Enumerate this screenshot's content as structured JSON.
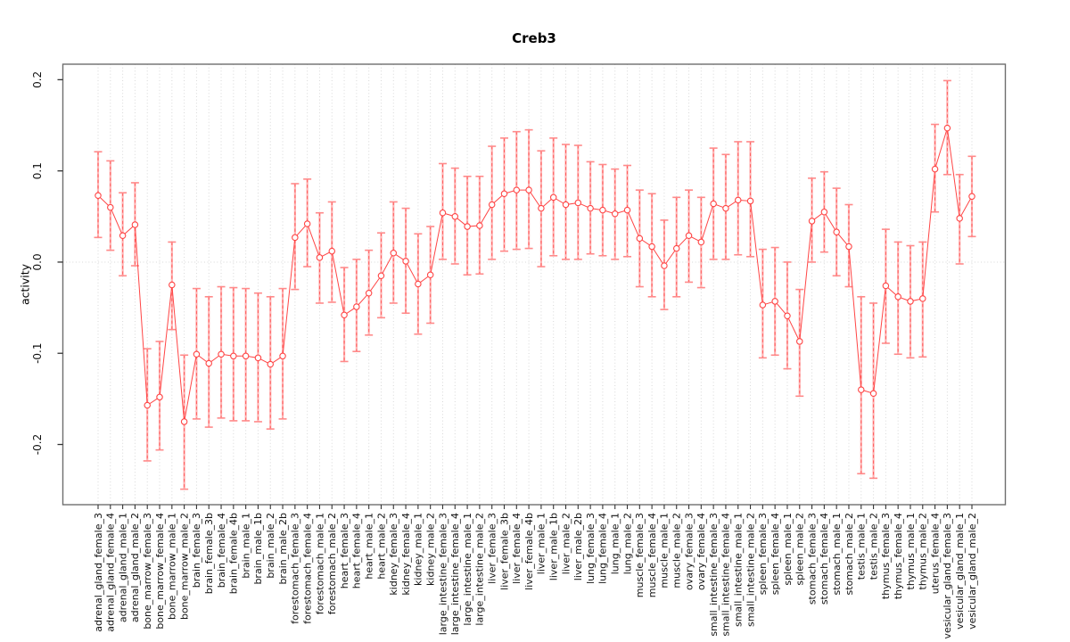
{
  "page": {
    "background": "#ffffff"
  },
  "chart_data": {
    "type": "scatter",
    "title": "Creb3",
    "ylabel": "activity",
    "xlabel": "",
    "legend": "none",
    "error_bars": true,
    "grid": "dotted vertical line per sample; dotted horizontal line at 0",
    "ylim": [
      -0.266,
      0.217
    ],
    "yticks": [
      0.2,
      0.1,
      0.0,
      -0.1,
      -0.2
    ],
    "ytick_labels": [
      "0.2",
      "0.1",
      "0.0",
      "-0.1",
      "-0.2"
    ],
    "samples": [
      "adrenal_gland_female_3",
      "adrenal_gland_female_4",
      "adrenal_gland_male_1",
      "adrenal_gland_male_2",
      "bone_marrow_female_3",
      "bone_marrow_female_4",
      "bone_marrow_male_1",
      "bone_marrow_male_2",
      "brain_female_3",
      "brain_female_3b",
      "brain_female_4",
      "brain_female_4b",
      "brain_male_1",
      "brain_male_1b",
      "brain_male_2",
      "brain_male_2b",
      "forestomach_female_3",
      "forestomach_female_4",
      "forestomach_male_1",
      "forestomach_male_2",
      "heart_female_3",
      "heart_female_4",
      "heart_male_1",
      "heart_male_2",
      "kidney_female_3",
      "kidney_female_4",
      "kidney_male_1",
      "kidney_male_2",
      "large_intestine_female_3",
      "large_intestine_female_4",
      "large_intestine_male_1",
      "large_intestine_male_2",
      "liver_female_3",
      "liver_female_3b",
      "liver_female_4",
      "liver_female_4b",
      "liver_male_1",
      "liver_male_1b",
      "liver_male_2",
      "liver_male_2b",
      "lung_female_3",
      "lung_female_4",
      "lung_male_1",
      "lung_male_2",
      "muscle_female_3",
      "muscle_female_4",
      "muscle_male_1",
      "muscle_male_2",
      "ovary_female_3",
      "ovary_female_4",
      "small_intestine_female_3",
      "small_intestine_female_4",
      "small_intestine_male_1",
      "small_intestine_male_2",
      "spleen_female_3",
      "spleen_female_4",
      "spleen_male_1",
      "spleen_male_2",
      "stomach_female_3",
      "stomach_female_4",
      "stomach_male_1",
      "stomach_male_2",
      "testis_male_1",
      "testis_male_2",
      "thymus_female_3",
      "thymus_female_4",
      "thymus_male_1",
      "thymus_male_2",
      "uterus_female_4",
      "vesicular_gland_female_3",
      "vesicular_gland_male_1",
      "vesicular_gland_male_2"
    ],
    "values": [
      0.073,
      0.06,
      0.029,
      0.041,
      -0.157,
      -0.148,
      -0.025,
      -0.175,
      -0.101,
      -0.111,
      -0.101,
      -0.103,
      -0.103,
      -0.105,
      -0.112,
      -0.103,
      0.027,
      0.042,
      0.005,
      0.012,
      -0.058,
      -0.049,
      -0.034,
      -0.015,
      0.01,
      0.001,
      -0.024,
      -0.014,
      0.054,
      0.05,
      0.039,
      0.04,
      0.063,
      0.075,
      0.079,
      0.079,
      0.059,
      0.071,
      0.063,
      0.065,
      0.059,
      0.057,
      0.053,
      0.057,
      0.026,
      0.017,
      -0.004,
      0.015,
      0.029,
      0.022,
      0.064,
      0.059,
      0.068,
      0.067,
      -0.047,
      -0.043,
      -0.059,
      -0.087,
      0.045,
      0.055,
      0.033,
      0.017,
      -0.14,
      -0.144,
      -0.026,
      -0.038,
      -0.043,
      -0.04,
      0.102,
      0.147,
      0.048,
      0.072
    ],
    "lo": [
      0.027,
      0.013,
      -0.015,
      -0.004,
      -0.218,
      -0.206,
      -0.074,
      -0.249,
      -0.172,
      -0.181,
      -0.171,
      -0.174,
      -0.174,
      -0.175,
      -0.183,
      -0.172,
      -0.03,
      -0.005,
      -0.045,
      -0.044,
      -0.109,
      -0.098,
      -0.08,
      -0.061,
      -0.045,
      -0.056,
      -0.079,
      -0.067,
      0.003,
      -0.002,
      -0.014,
      -0.013,
      0.003,
      0.012,
      0.014,
      0.015,
      -0.005,
      0.007,
      0.003,
      0.003,
      0.009,
      0.007,
      0.003,
      0.006,
      -0.027,
      -0.038,
      -0.052,
      -0.038,
      -0.022,
      -0.028,
      0.003,
      0.003,
      0.008,
      0.006,
      -0.105,
      -0.102,
      -0.117,
      -0.147,
      0.0,
      0.011,
      -0.015,
      -0.027,
      -0.232,
      -0.237,
      -0.089,
      -0.101,
      -0.105,
      -0.104,
      0.055,
      0.096,
      -0.002,
      0.028
    ],
    "hi": [
      0.121,
      0.111,
      0.076,
      0.087,
      -0.095,
      -0.087,
      0.022,
      -0.102,
      -0.029,
      -0.038,
      -0.027,
      -0.028,
      -0.029,
      -0.034,
      -0.038,
      -0.029,
      0.086,
      0.091,
      0.054,
      0.066,
      -0.006,
      0.003,
      0.013,
      0.032,
      0.066,
      0.059,
      0.031,
      0.039,
      0.108,
      0.103,
      0.094,
      0.094,
      0.127,
      0.136,
      0.143,
      0.145,
      0.122,
      0.136,
      0.129,
      0.128,
      0.11,
      0.107,
      0.102,
      0.106,
      0.079,
      0.075,
      0.046,
      0.071,
      0.079,
      0.071,
      0.125,
      0.118,
      0.132,
      0.132,
      0.014,
      0.016,
      0.0,
      -0.03,
      0.092,
      0.099,
      0.081,
      0.063,
      -0.038,
      -0.045,
      0.036,
      0.022,
      0.018,
      0.022,
      0.151,
      0.199,
      0.096,
      0.116
    ],
    "colors": {
      "point_line": "#ff4545",
      "stem_soft": "#ffb3b3",
      "stem_dash": "#ff5c5c",
      "cap": "#ff8a8a",
      "grid": "#d8d8d8",
      "box": "#6e6e6e",
      "tick": "#333333",
      "text": "#111111"
    }
  }
}
